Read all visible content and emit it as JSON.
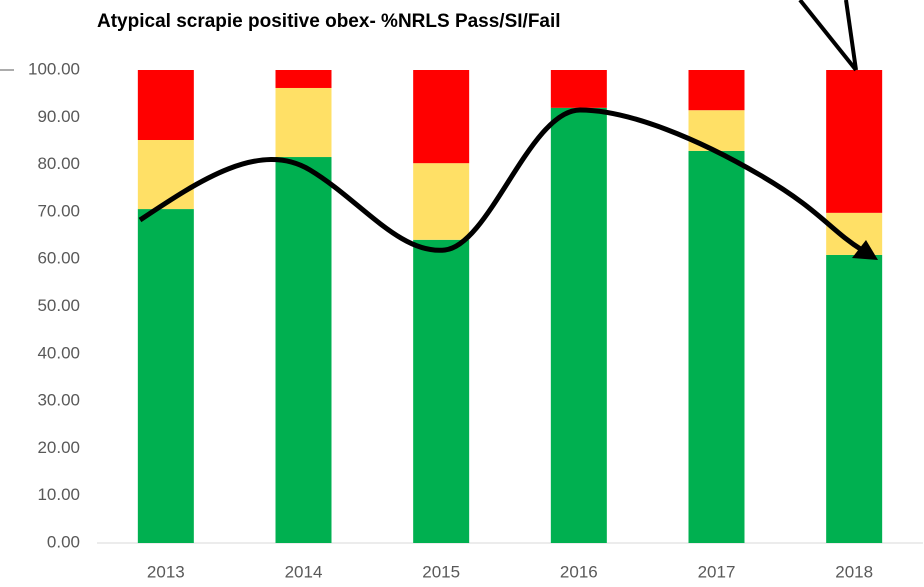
{
  "chart_data": {
    "type": "stacked_bar",
    "title": "Atypical scrapie positive obex- %NRLS Pass/SI/Fail",
    "categories": [
      "2013",
      "2014",
      "2015",
      "2016",
      "2017",
      "2018"
    ],
    "series": [
      {
        "color": "#00b050",
        "values": [
          70.6,
          81.6,
          64.1,
          92.0,
          82.9,
          60.9
        ]
      },
      {
        "color": "#ffe066",
        "values": [
          14.6,
          14.6,
          16.2,
          0,
          8.6,
          8.9
        ]
      },
      {
        "color": "#ff0000",
        "values": [
          14.8,
          3.8,
          19.7,
          8.0,
          8.5,
          30.2
        ]
      }
    ],
    "ylim": [
      0,
      100
    ],
    "yticks": [
      {
        "value": 0,
        "label": "0.00"
      },
      {
        "value": 10,
        "label": "10.00"
      },
      {
        "value": 20,
        "label": "20.00"
      },
      {
        "value": 30,
        "label": "30.00"
      },
      {
        "value": 40,
        "label": "40.00"
      },
      {
        "value": 50,
        "label": "50.00"
      },
      {
        "value": 60,
        "label": "60.00"
      },
      {
        "value": 70,
        "label": "70.00"
      },
      {
        "value": 80,
        "label": "80.00"
      },
      {
        "value": 90,
        "label": "90.00"
      },
      {
        "value": 100,
        "label": "100.00"
      }
    ],
    "grid": false
  }
}
